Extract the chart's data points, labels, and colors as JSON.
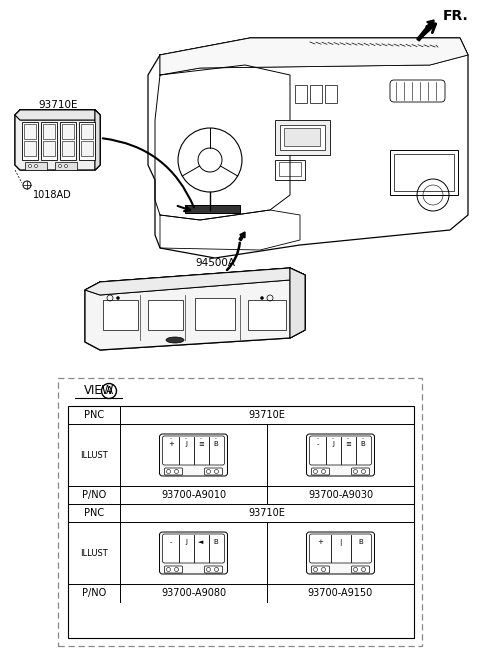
{
  "bg_color": "#ffffff",
  "label_93710E": "93710E",
  "label_94500A": "94500A",
  "label_1018AD": "1018AD",
  "fr_label": "FR.",
  "pnc_label": "PNC",
  "pnc_value": "93710E",
  "illust_label": "ILLUST",
  "pno_label": "P/NO",
  "pno_values": [
    "93700-A9010",
    "93700-A9030",
    "93700-A9080",
    "93700-A9150"
  ],
  "view_label": "VIEW",
  "view_circle_label": "A"
}
